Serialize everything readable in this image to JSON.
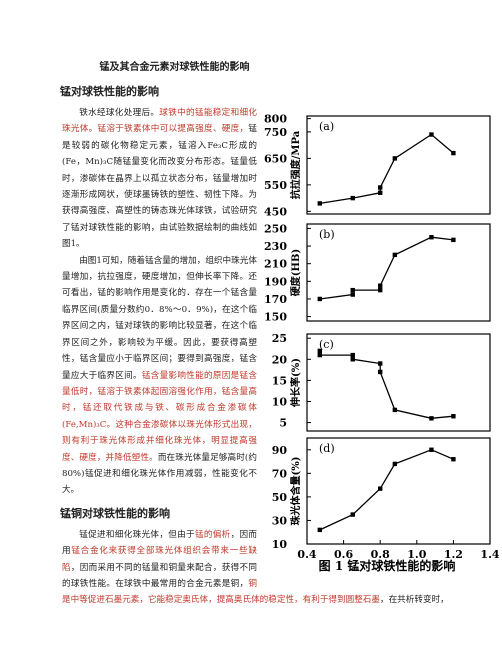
{
  "title": "锰及其合金元素对球铁性能的影响",
  "sections": [
    {
      "heading": "锰对球铁性能的影响",
      "paragraphs": [
        [
          {
            "text": "铁水经球化处理后。"
          },
          {
            "text": "球铁中的锰能稳定和细化珠光体。锰溶于铁素体中可以提高强度、硬度，",
            "color": "#c0392b"
          },
          {
            "text": "锰是较弱的碳化物稳定元素，锰溶入Fe₃C形成的(Fe，Mn)₃C随锰量变化而改变分布形态。锰量低时，渗碳体在晶界上以孤立状态分布，锰量增加时逐渐形成网状，使球墨铸铁的塑性、韧性下降。为获得高强度、高塑性的铸态珠光体球铁，试验研究了锰对球铁性能的影响，由试验数据绘制的曲线如图1。"
          }
        ],
        [
          {
            "text": "由图1可知，随着锰含量的增加，组织中珠光体量增加，抗拉强度，硬度增加，但伸长率下降。还可看出，锰的影响作用是变化的．存在一个锰含量临界区间(质量分数约0．8%～0．9%)，在这个临界区间之内，锰对球铁的影响比较显著，在这个临界区间之外，影响较为平缓。因此，要获得高塑性，锰含量应小于临界区间；要得到高强度，锰含量应大于临界区间。"
          },
          {
            "text": "锰含量影响性能的原因是锰含量低时，锰溶于铁素体起固溶强化作用，锰含量高时，锰还取代铁成与铁、碳形成合金渗碳体(Fe,Mn)₃C。这种合金渗碳体以珠光体形式出现，则有利于珠光体形成并细化珠光体，明显提高强度、硬度，并降低塑性。",
            "color": "#c0392b"
          },
          {
            "text": "而在珠光体量足够高时(约80%)锰促进和细化珠光体作用减弱，性能变化不大。"
          }
        ]
      ]
    },
    {
      "heading": "锰铜对球铁性能的影响",
      "paragraphs": [
        [
          {
            "text": "锰促进和细化珠光体，但由于"
          },
          {
            "text": "锰的偏析",
            "color": "#c0392b"
          },
          {
            "text": "，因而用"
          },
          {
            "text": "锰合金化来获得全部珠光体组织会带来一些缺陷",
            "color": "#c0392b"
          },
          {
            "text": "，因而采用不同的锰量和铜量来配合，获得不同的球铁性能。在球铁中最常用的合金元素是铜，"
          },
          {
            "text": "铜是中等促进石墨元素，它能稳定奥氏体，提高奥氏体的稳定性，有利于得到圆整石墨",
            "color": "#c0392b"
          },
          {
            "text": "，在共析转变时，"
          }
        ]
      ]
    }
  ],
  "figure_caption": "图 1  锰对球铁性能的影响",
  "chart_data": [
    {
      "type": "line",
      "annotation": "(a)",
      "ylabel": "抗拉强度/MPa",
      "color": "#000000",
      "x": [
        0.47,
        0.65,
        0.8,
        0.8,
        0.88,
        1.08,
        1.2
      ],
      "values": [
        480,
        500,
        520,
        540,
        650,
        740,
        670
      ],
      "xlim": [
        0.4,
        1.4
      ],
      "ylim": [
        440,
        810
      ],
      "yticks": [
        450,
        550,
        650,
        750,
        800
      ]
    },
    {
      "type": "line",
      "annotation": "(b)",
      "ylabel": "硬度(HB)",
      "color": "#000000",
      "x": [
        0.47,
        0.65,
        0.65,
        0.8,
        0.8,
        0.88,
        1.08,
        1.2
      ],
      "values": [
        170,
        175,
        180,
        180,
        185,
        220,
        240,
        237
      ],
      "xlim": [
        0.4,
        1.4
      ],
      "ylim": [
        145,
        255
      ],
      "yticks": [
        150,
        170,
        190,
        210,
        230,
        250
      ]
    },
    {
      "type": "line",
      "annotation": "(c)",
      "ylabel": "伸长率(%)",
      "color": "#000000",
      "x": [
        0.47,
        0.47,
        0.65,
        0.65,
        0.8,
        0.8,
        0.88,
        1.08,
        1.2
      ],
      "values": [
        22,
        21,
        21,
        20,
        19,
        17,
        8,
        6,
        6.5
      ],
      "xlim": [
        0.4,
        1.4
      ],
      "ylim": [
        3,
        26
      ],
      "yticks": [
        5,
        10,
        15,
        20,
        25
      ]
    },
    {
      "type": "line",
      "annotation": "(d)",
      "ylabel": "珠光体含量(%)",
      "color": "#000000",
      "x": [
        0.47,
        0.65,
        0.8,
        0.88,
        1.08,
        1.2
      ],
      "values": [
        22,
        35,
        57,
        78,
        90,
        82
      ],
      "xlim": [
        0.4,
        1.4
      ],
      "ylim": [
        10,
        100
      ],
      "yticks": [
        10,
        30,
        50,
        70,
        90
      ],
      "xticks": [
        0.4,
        0.6,
        0.8,
        {
          "value": 1,
          "label": "1.0"
        },
        1.2,
        1.4
      ]
    }
  ]
}
